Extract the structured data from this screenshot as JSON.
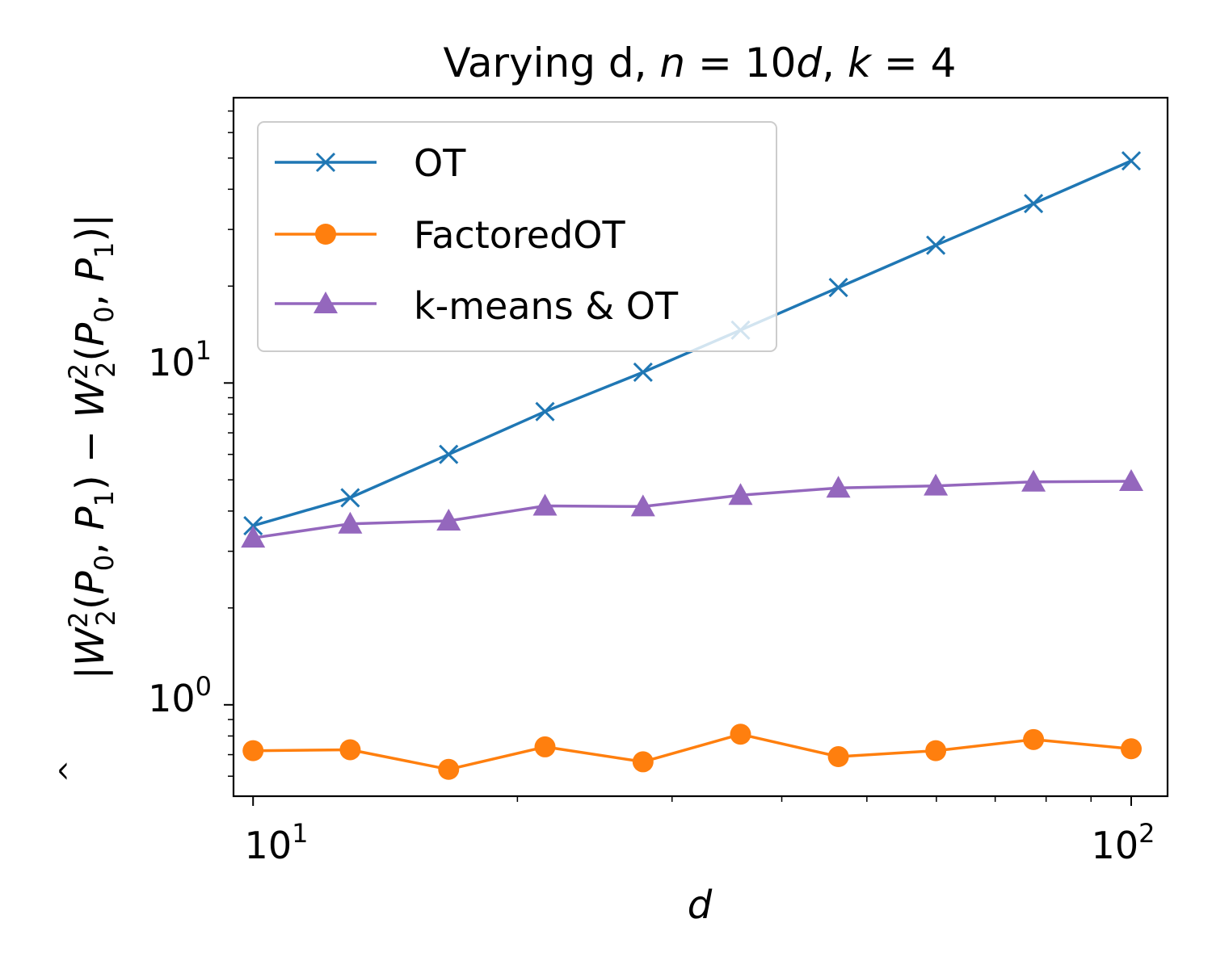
{
  "chart_data": {
    "type": "line",
    "x_scale": "log",
    "y_scale": "log",
    "title": {
      "text": "Varying d, ",
      "math_n": "n",
      "eq1": " = 10",
      "math_d": "d",
      "comma": ", ",
      "math_k": "k",
      "eq2": " = 4"
    },
    "xlabel": "d",
    "ylabel": {
      "bar_left": "|",
      "W": "W",
      "sub": "2",
      "sup": "2",
      "paren_open": "(",
      "P": "P",
      "sub0": "0",
      "comma": ", ",
      "sub1": "1",
      "paren_close": ")",
      "minus": " − ",
      "bar_right": "|"
    },
    "xlim": [
      9.5,
      110
    ],
    "ylim": [
      0.52,
      77
    ],
    "x_ticks": [
      {
        "value": 10,
        "base": "10",
        "exp": "1"
      },
      {
        "value": 100,
        "base": "10",
        "exp": "2"
      }
    ],
    "y_ticks": [
      {
        "value": 1,
        "base": "10",
        "exp": "0"
      },
      {
        "value": 10,
        "base": "10",
        "exp": "1"
      }
    ],
    "x": [
      10,
      12.9,
      16.7,
      21.5,
      27.8,
      35.9,
      46.4,
      59.9,
      77.4,
      100
    ],
    "series": [
      {
        "name": "OT",
        "color": "#1f77b4",
        "marker": "x",
        "values": [
          3.6,
          4.4,
          6.0,
          8.15,
          10.8,
          14.6,
          19.8,
          26.8,
          36.1,
          49.0
        ]
      },
      {
        "name": "FactoredOT",
        "color": "#ff7f0e",
        "marker": "circle",
        "values": [
          0.72,
          0.725,
          0.63,
          0.74,
          0.665,
          0.81,
          0.69,
          0.72,
          0.78,
          0.73
        ]
      },
      {
        "name": "k-means & OT",
        "color": "#9467bd",
        "marker": "triangle",
        "values": [
          3.3,
          3.65,
          3.73,
          4.15,
          4.13,
          4.48,
          4.72,
          4.79,
          4.93,
          4.95
        ]
      }
    ],
    "legend": {
      "position": "top-left"
    },
    "grid": false
  }
}
